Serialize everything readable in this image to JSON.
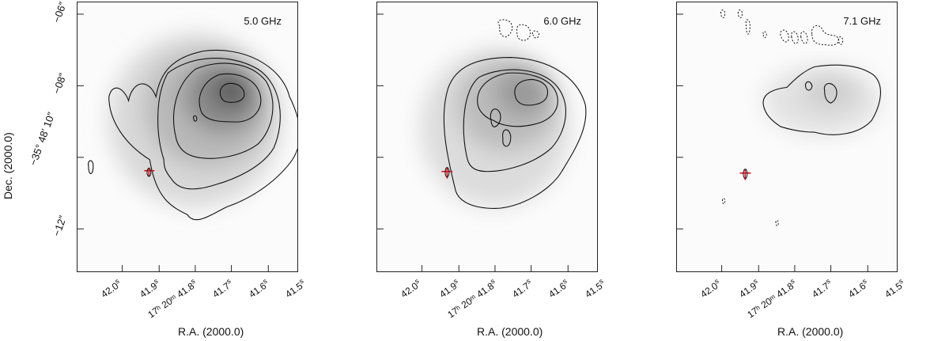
{
  "figure": {
    "ylabel": "Dec. (2000.0)",
    "yticks": [
      "−06″",
      "−08″",
      "−35° 48′ 10″",
      "−12″"
    ],
    "xlabel": "R.A. (2000.0)",
    "xticks": [
      {
        "main": "42.0",
        "sup": "s"
      },
      {
        "main": "41.9",
        "sup": "s"
      },
      {
        "main": "17ʰ 20ᵐ 41.8",
        "sup": "s"
      },
      {
        "main": "41.7",
        "sup": "s"
      },
      {
        "main": "41.6",
        "sup": "s"
      },
      {
        "main": "41.5",
        "sup": "s"
      }
    ]
  },
  "panels": [
    {
      "frequency": "5.0 GHz"
    },
    {
      "frequency": "6.0 GHz"
    },
    {
      "frequency": "7.1 GHz"
    }
  ]
}
